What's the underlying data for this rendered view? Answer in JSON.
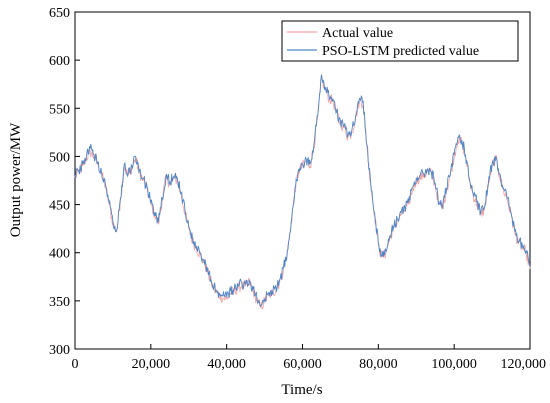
{
  "chart_data": {
    "type": "line",
    "title": "",
    "xlabel": "Time/s",
    "ylabel": "Output power/MW",
    "xlim": [
      0,
      120000
    ],
    "ylim": [
      300,
      650
    ],
    "grid": false,
    "legend_position": "top-right",
    "x_ticks": [
      {
        "value": 0,
        "label": "0"
      },
      {
        "value": 20000,
        "label": "20,000"
      },
      {
        "value": 40000,
        "label": "40,000"
      },
      {
        "value": 60000,
        "label": "60,000"
      },
      {
        "value": 80000,
        "label": "80,000"
      },
      {
        "value": 100000,
        "label": "100,000"
      },
      {
        "value": 120000,
        "label": "120,000"
      }
    ],
    "y_ticks": [
      {
        "value": 300,
        "label": "300"
      },
      {
        "value": 350,
        "label": "350"
      },
      {
        "value": 400,
        "label": "400"
      },
      {
        "value": 450,
        "label": "450"
      },
      {
        "value": 500,
        "label": "500"
      },
      {
        "value": 550,
        "label": "550"
      },
      {
        "value": 600,
        "label": "600"
      },
      {
        "value": 650,
        "label": "650"
      }
    ],
    "series": [
      {
        "name": "Actual value",
        "color": "#f4a3a3",
        "x": [
          0,
          1000,
          2000,
          3000,
          4000,
          5000,
          6000,
          7000,
          8000,
          9000,
          10000,
          11000,
          12000,
          13000,
          14000,
          15000,
          16000,
          17000,
          18000,
          19000,
          20000,
          21000,
          22000,
          23000,
          24000,
          25000,
          26000,
          27000,
          28000,
          29000,
          30000,
          31000,
          32000,
          33000,
          34000,
          35000,
          36000,
          37000,
          38000,
          39000,
          40000,
          41000,
          42000,
          43000,
          44000,
          45000,
          46000,
          47000,
          48000,
          49000,
          50000,
          51000,
          52000,
          53000,
          54000,
          55000,
          56000,
          57000,
          58000,
          59000,
          60000,
          61000,
          62000,
          63000,
          64000,
          65000,
          66000,
          67000,
          68000,
          69000,
          70000,
          71000,
          72000,
          73000,
          74000,
          75000,
          76000,
          77000,
          78000,
          79000,
          80000,
          81000,
          82000,
          83000,
          84000,
          85000,
          86000,
          87000,
          88000,
          89000,
          90000,
          91000,
          92000,
          93000,
          94000,
          95000,
          96000,
          97000,
          98000,
          99000,
          100000,
          101000,
          102000,
          103000,
          104000,
          105000,
          106000,
          107000,
          108000,
          109000,
          110000,
          111000,
          112000,
          113000,
          114000,
          115000,
          116000,
          117000,
          118000,
          119000,
          120000
        ],
        "values": [
          478,
          484,
          490,
          498,
          505,
          500,
          492,
          482,
          470,
          450,
          430,
          422,
          455,
          490,
          480,
          488,
          498,
          483,
          475,
          466,
          450,
          440,
          430,
          455,
          478,
          472,
          477,
          475,
          460,
          442,
          425,
          412,
          405,
          398,
          390,
          380,
          368,
          360,
          356,
          353,
          352,
          358,
          360,
          363,
          366,
          365,
          370,
          360,
          350,
          343,
          350,
          355,
          358,
          362,
          370,
          382,
          400,
          430,
          465,
          485,
          490,
          495,
          490,
          510,
          540,
          580,
          570,
          560,
          558,
          545,
          535,
          530,
          520,
          525,
          540,
          558,
          555,
          510,
          470,
          440,
          408,
          395,
          400,
          415,
          425,
          433,
          440,
          445,
          450,
          465,
          475,
          478,
          480,
          485,
          482,
          470,
          450,
          448,
          465,
          480,
          500,
          518,
          515,
          500,
          475,
          460,
          450,
          440,
          445,
          470,
          490,
          498,
          480,
          465,
          455,
          440,
          420,
          410,
          405,
          400,
          383
        ]
      },
      {
        "name": "PSO-LSTM predicted value",
        "color": "#4f86c6",
        "x": [
          0,
          1000,
          2000,
          3000,
          4000,
          5000,
          6000,
          7000,
          8000,
          9000,
          10000,
          11000,
          12000,
          13000,
          14000,
          15000,
          16000,
          17000,
          18000,
          19000,
          20000,
          21000,
          22000,
          23000,
          24000,
          25000,
          26000,
          27000,
          28000,
          29000,
          30000,
          31000,
          32000,
          33000,
          34000,
          35000,
          36000,
          37000,
          38000,
          39000,
          40000,
          41000,
          42000,
          43000,
          44000,
          45000,
          46000,
          47000,
          48000,
          49000,
          50000,
          51000,
          52000,
          53000,
          54000,
          55000,
          56000,
          57000,
          58000,
          59000,
          60000,
          61000,
          62000,
          63000,
          64000,
          65000,
          66000,
          67000,
          68000,
          69000,
          70000,
          71000,
          72000,
          73000,
          74000,
          75000,
          76000,
          77000,
          78000,
          79000,
          80000,
          81000,
          82000,
          83000,
          84000,
          85000,
          86000,
          87000,
          88000,
          89000,
          90000,
          91000,
          92000,
          93000,
          94000,
          95000,
          96000,
          97000,
          98000,
          99000,
          100000,
          101000,
          102000,
          103000,
          104000,
          105000,
          106000,
          107000,
          108000,
          109000,
          110000,
          111000,
          112000,
          113000,
          114000,
          115000,
          116000,
          117000,
          118000,
          119000,
          120000
        ],
        "values": [
          480,
          485,
          492,
          500,
          508,
          502,
          494,
          484,
          472,
          452,
          432,
          424,
          457,
          492,
          482,
          490,
          500,
          485,
          477,
          468,
          452,
          442,
          432,
          457,
          480,
          474,
          479,
          477,
          462,
          444,
          427,
          414,
          407,
          400,
          392,
          382,
          370,
          362,
          358,
          355,
          354,
          360,
          362,
          365,
          368,
          367,
          372,
          362,
          352,
          345,
          352,
          357,
          360,
          364,
          372,
          384,
          402,
          432,
          467,
          487,
          492,
          497,
          492,
          512,
          542,
          585,
          572,
          562,
          560,
          547,
          537,
          532,
          522,
          527,
          542,
          560,
          557,
          512,
          472,
          442,
          410,
          397,
          402,
          417,
          427,
          435,
          442,
          447,
          452,
          467,
          477,
          480,
          482,
          487,
          484,
          472,
          452,
          450,
          467,
          482,
          502,
          520,
          517,
          502,
          477,
          462,
          452,
          442,
          447,
          472,
          492,
          500,
          482,
          467,
          457,
          442,
          422,
          412,
          407,
          402,
          385
        ]
      }
    ]
  }
}
